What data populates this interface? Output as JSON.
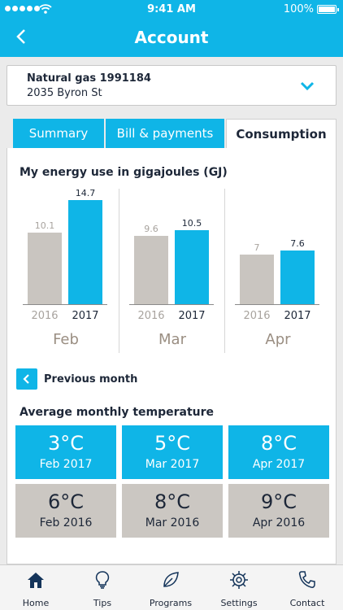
{
  "status_bar": {
    "time": "9:41 AM",
    "battery": "100%"
  },
  "header": {
    "title": "Account"
  },
  "account": {
    "name": "Natural gas 1991184",
    "address": "2035 Byron St"
  },
  "tabs": [
    {
      "label": "Summary",
      "active": false
    },
    {
      "label": "Bill & payments",
      "active": false
    },
    {
      "label": "Consumption",
      "active": true
    }
  ],
  "chart_section": {
    "title": "My energy use in gigajoules (GJ)"
  },
  "chart_data": {
    "type": "bar",
    "title": "My energy use in gigajoules (GJ)",
    "categories": [
      "Feb",
      "Mar",
      "Apr"
    ],
    "series": [
      {
        "name": "2016",
        "values": [
          10.1,
          9.6,
          7
        ]
      },
      {
        "name": "2017",
        "values": [
          14.7,
          10.5,
          7.6
        ]
      }
    ],
    "labels": {
      "prev": [
        "10.1",
        "9.6",
        "7"
      ],
      "cur": [
        "14.7",
        "10.5",
        "7.6"
      ]
    },
    "ylim": [
      0,
      14.7
    ],
    "colors": {
      "prev": "#c9c5c0",
      "cur": "#0fb5e7"
    }
  },
  "previous_month": {
    "label": "Previous month"
  },
  "temperature": {
    "title": "Average monthly temperature",
    "current": [
      {
        "value": "3°C",
        "period": "Feb 2017"
      },
      {
        "value": "5°C",
        "period": "Mar 2017"
      },
      {
        "value": "8°C",
        "period": "Apr 2017"
      }
    ],
    "previous": [
      {
        "value": "6°C",
        "period": "Feb 2016"
      },
      {
        "value": "8°C",
        "period": "Mar 2016"
      },
      {
        "value": "9°C",
        "period": "Apr 2016"
      }
    ]
  },
  "nav": [
    {
      "label": "Home",
      "icon": "home-icon"
    },
    {
      "label": "Tips",
      "icon": "lightbulb-icon"
    },
    {
      "label": "Programs",
      "icon": "leaf-icon"
    },
    {
      "label": "Settings",
      "icon": "gear-icon"
    },
    {
      "label": "Contact",
      "icon": "phone-icon"
    }
  ],
  "colors": {
    "brand": "#0fb5e7",
    "text": "#1d2738",
    "muted": "#c9c5c0"
  }
}
